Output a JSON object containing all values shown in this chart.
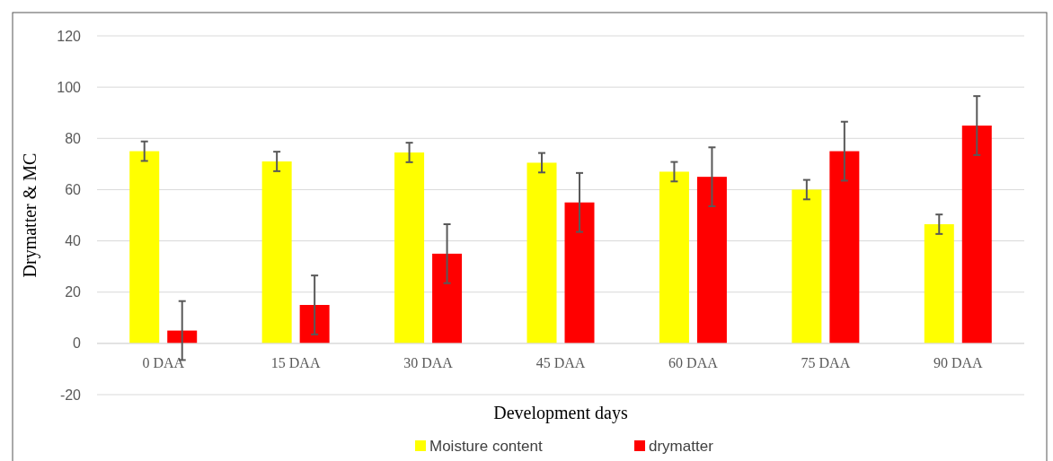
{
  "chart_data": {
    "type": "bar",
    "xlabel": "Development days",
    "ylabel": "Drymatter & MC",
    "categories": [
      "0 DAA",
      "15 DAA",
      "30 DAA",
      "45 DAA",
      "60 DAA",
      "75 DAA",
      "90 DAA"
    ],
    "series": [
      {
        "name": "Moisture content",
        "color": "#ffff00",
        "values": [
          75,
          71,
          74.5,
          70.5,
          67,
          60,
          46.5
        ],
        "errors": [
          3.8,
          3.8,
          3.8,
          3.8,
          3.8,
          3.8,
          3.8
        ]
      },
      {
        "name": "drymatter",
        "color": "#ff0000",
        "values": [
          5,
          15,
          35,
          55,
          65,
          75,
          85
        ],
        "errors": [
          11.5,
          11.5,
          11.5,
          11.5,
          11.5,
          11.5,
          11.5
        ]
      }
    ],
    "ylim": [
      -20,
      120
    ],
    "yticks": [
      -20,
      0,
      20,
      40,
      60,
      80,
      100,
      120
    ],
    "grid": "y",
    "legend": "bottom"
  }
}
